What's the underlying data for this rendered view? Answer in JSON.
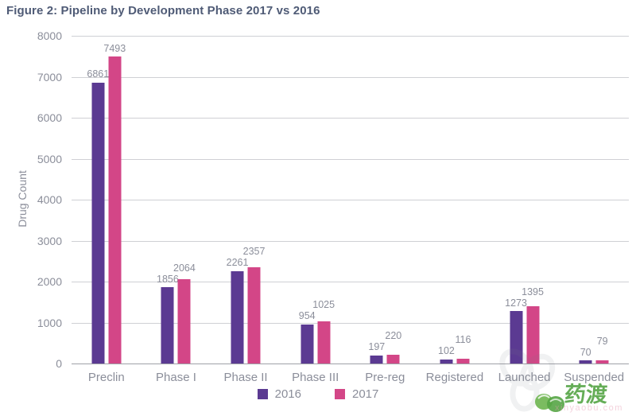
{
  "figure": {
    "title": "Figure 2: Pipeline by Development Phase 2017 vs 2016"
  },
  "chart_data": {
    "type": "bar",
    "title": "Figure 2: Pipeline by Development Phase 2017 vs 2016",
    "xlabel": "",
    "ylabel": "Drug Count",
    "ylim": [
      0,
      8000
    ],
    "ytick_step": 1000,
    "grid": true,
    "legend_position": "bottom",
    "categories": [
      "Preclin",
      "Phase I",
      "Phase II",
      "Phase III",
      "Pre-reg",
      "Registered",
      "Launched",
      "Suspended"
    ],
    "series": [
      {
        "name": "2016",
        "color": "#5b3a92",
        "values": [
          6861,
          1856,
          2261,
          954,
          197,
          102,
          1273,
          70
        ]
      },
      {
        "name": "2017",
        "color": "#d34687",
        "values": [
          7493,
          2064,
          2357,
          1025,
          220,
          116,
          1395,
          79
        ]
      }
    ]
  },
  "watermark": {
    "brand": "药渡",
    "url_text": "xinyaobu.com"
  },
  "colors": {
    "series_2016": "#5b3a92",
    "series_2017": "#d34687",
    "title_text": "#4f5b76",
    "axis_text": "#8b8e9a",
    "gridline": "#cfd0d4",
    "baseline": "#9fa1a8",
    "watermark_green": "#55a545"
  }
}
